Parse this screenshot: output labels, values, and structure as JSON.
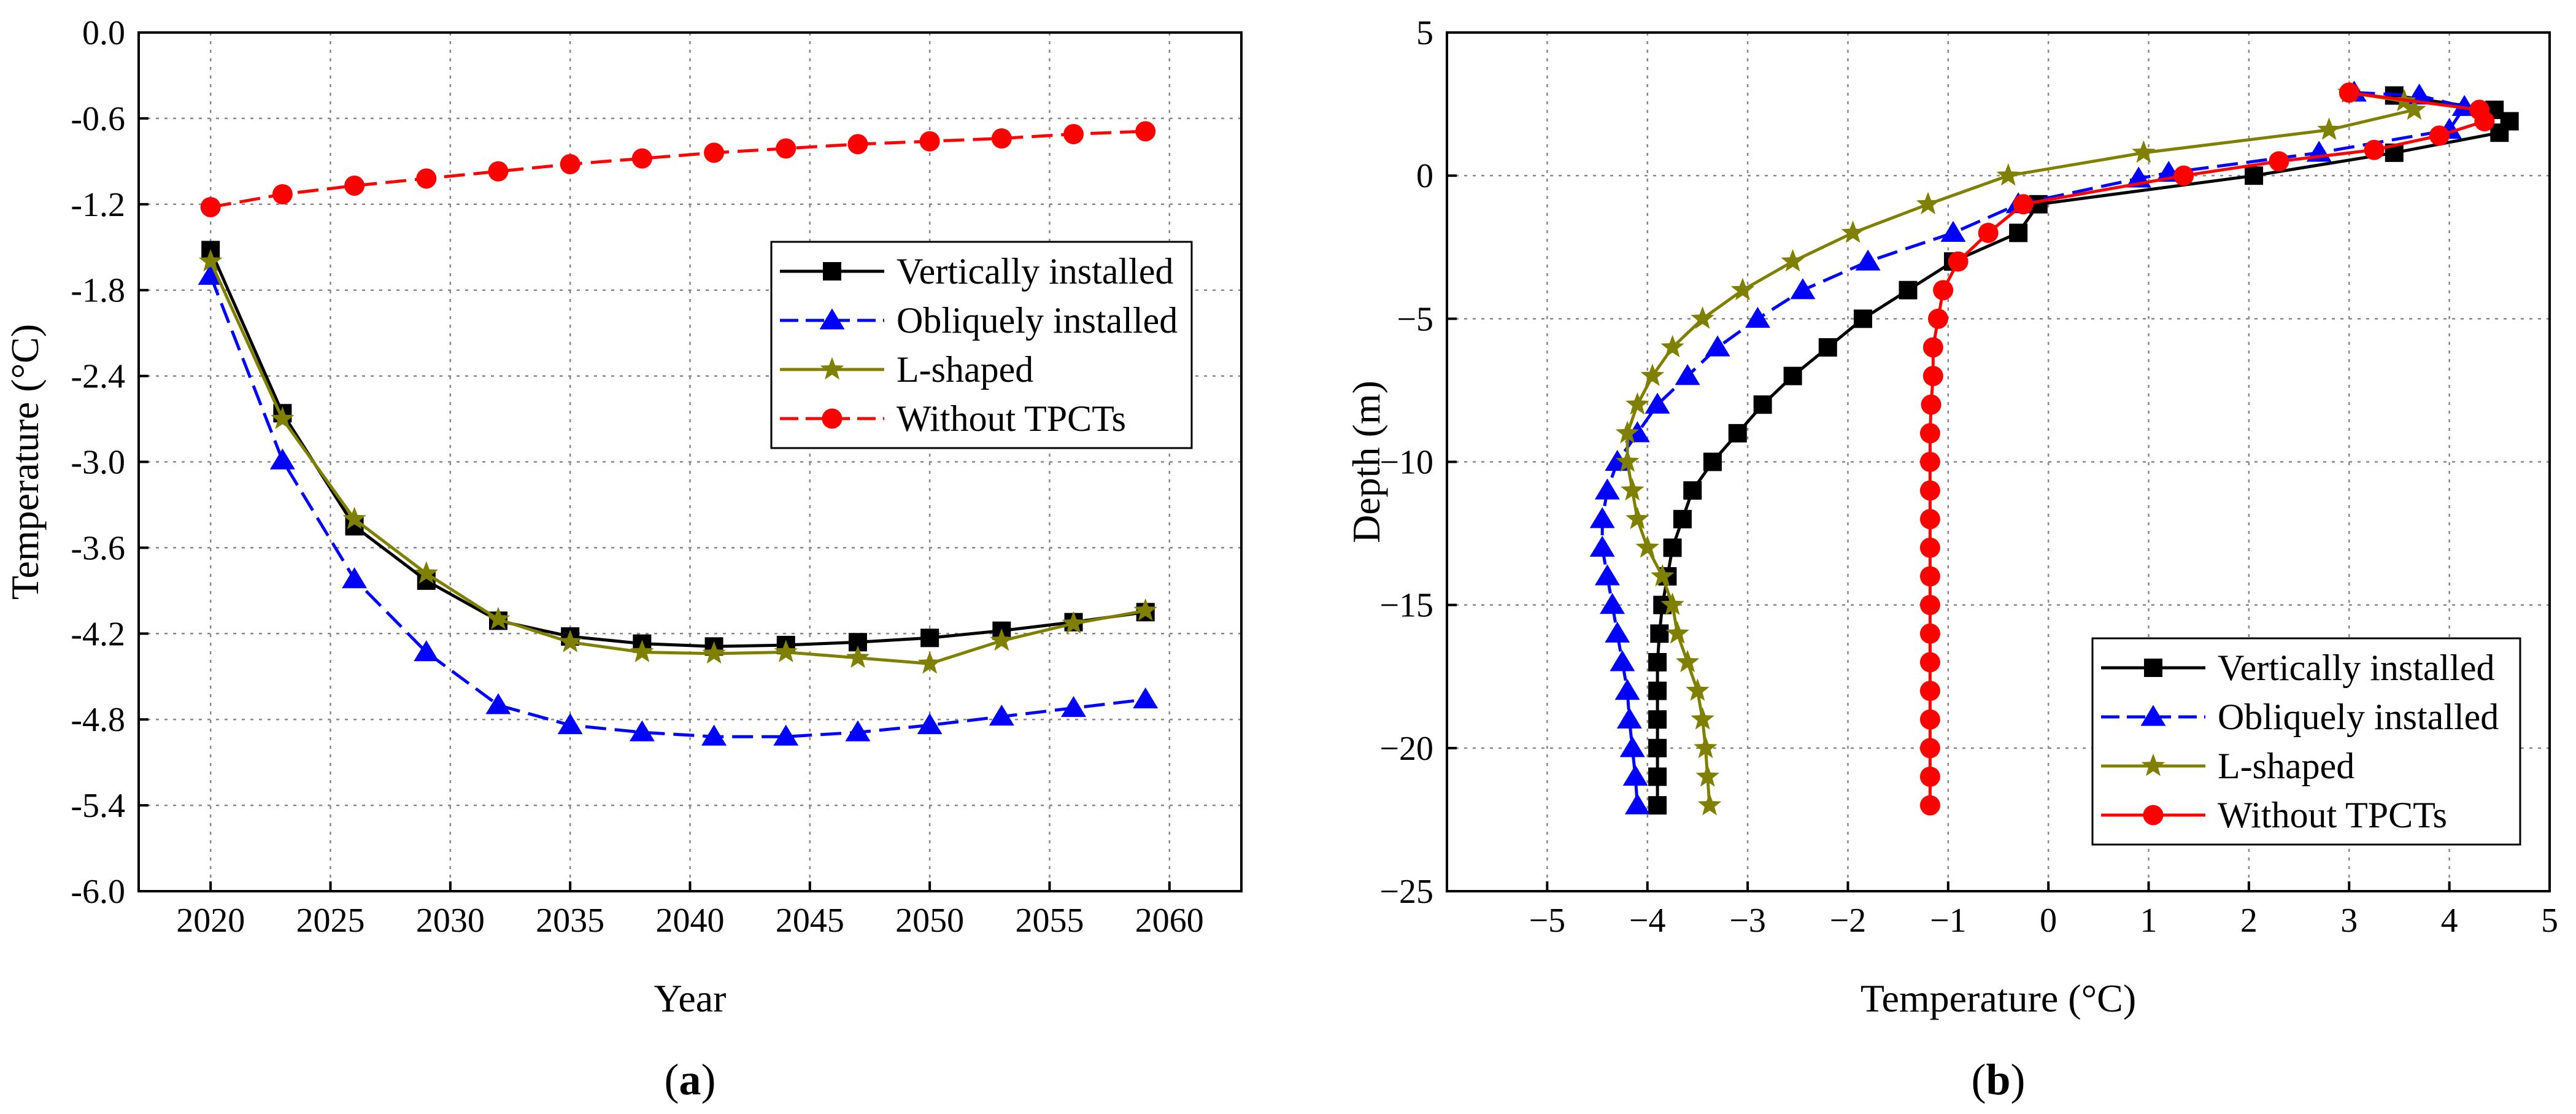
{
  "chart_data": [
    {
      "type": "line",
      "panel_label_prefix": "(",
      "panel_label_letter": "a",
      "panel_label_suffix": ")",
      "xlabel": "Year",
      "ylabel": "Temperature (°C)",
      "xlim": [
        2017,
        2063
      ],
      "ylim": [
        -6.0,
        0.0
      ],
      "xticks": [
        2020,
        2025,
        2030,
        2035,
        2040,
        2045,
        2050,
        2055,
        2060
      ],
      "yticks": [
        0.0,
        -0.6,
        -1.2,
        -1.8,
        -2.4,
        -3.0,
        -3.6,
        -4.2,
        -4.8,
        -5.4,
        -6.0
      ],
      "ytick_labels": [
        "0.0",
        "-0.6",
        "-1.2",
        "-1.8",
        "-2.4",
        "-3.0",
        "-3.6",
        "-4.2",
        "-4.8",
        "-5.4",
        "-6.0"
      ],
      "grid": true,
      "legend_position": "middle-right",
      "x": [
        2020,
        2023,
        2026,
        2029,
        2032,
        2035,
        2038,
        2041,
        2044,
        2047,
        2050,
        2053,
        2056,
        2059
      ],
      "series": [
        {
          "name": "Vertically installed",
          "color": "#000000",
          "marker": "square",
          "dash": "solid",
          "values": [
            -1.52,
            -2.66,
            -3.45,
            -3.83,
            -4.11,
            -4.22,
            -4.27,
            -4.29,
            -4.28,
            -4.26,
            -4.23,
            -4.18,
            -4.12,
            -4.05
          ]
        },
        {
          "name": "Obliquely installed",
          "color": "#0000ff",
          "marker": "triangle",
          "dash": "dashed",
          "values": [
            -1.7,
            -2.99,
            -3.82,
            -4.33,
            -4.7,
            -4.84,
            -4.89,
            -4.92,
            -4.92,
            -4.89,
            -4.84,
            -4.78,
            -4.72,
            -4.66
          ]
        },
        {
          "name": "L-shaped",
          "color": "#808000",
          "marker": "star",
          "dash": "solid",
          "values": [
            -1.6,
            -2.7,
            -3.4,
            -3.78,
            -4.1,
            -4.26,
            -4.33,
            -4.34,
            -4.33,
            -4.37,
            -4.41,
            -4.25,
            -4.13,
            -4.04
          ]
        },
        {
          "name": "Without TPCTs",
          "color": "#ff0000",
          "marker": "circle",
          "dash": "dashed",
          "values": [
            -1.22,
            -1.13,
            -1.07,
            -1.02,
            -0.97,
            -0.92,
            -0.88,
            -0.84,
            -0.81,
            -0.78,
            -0.76,
            -0.74,
            -0.71,
            -0.69
          ]
        }
      ]
    },
    {
      "type": "line",
      "panel_label_prefix": "(",
      "panel_label_letter": "b",
      "panel_label_suffix": ")",
      "xlabel": "Temperature (°C)",
      "ylabel": "Depth (m)",
      "xlim": [
        -6,
        5
      ],
      "ylim": [
        -25,
        5
      ],
      "xticks": [
        -5,
        -4,
        -3,
        -2,
        -1,
        0,
        1,
        2,
        3,
        4,
        5
      ],
      "xtick_labels": [
        "−5",
        "−4",
        "−3",
        "−2",
        "−1",
        "0",
        "1",
        "2",
        "3",
        "4",
        "5"
      ],
      "yticks": [
        5,
        0,
        -5,
        -10,
        -15,
        -20,
        -25
      ],
      "ytick_labels": [
        "5",
        "0",
        "−5",
        "−10",
        "−15",
        "−20",
        "−25"
      ],
      "grid": true,
      "legend_position": "bottom-right",
      "series": [
        {
          "name": "Vertically installed",
          "color": "#000000",
          "marker": "square",
          "dash": "solid",
          "points": [
            [
              3.45,
              2.8
            ],
            [
              4.45,
              2.3
            ],
            [
              4.6,
              1.9
            ],
            [
              4.5,
              1.5
            ],
            [
              3.45,
              0.8
            ],
            [
              2.05,
              0.0
            ],
            [
              -0.1,
              -1.0
            ],
            [
              -0.3,
              -2.0
            ],
            [
              -0.95,
              -3.0
            ],
            [
              -1.4,
              -4.0
            ],
            [
              -1.85,
              -5.0
            ],
            [
              -2.2,
              -6.0
            ],
            [
              -2.55,
              -7.0
            ],
            [
              -2.85,
              -8.0
            ],
            [
              -3.1,
              -9.0
            ],
            [
              -3.35,
              -10.0
            ],
            [
              -3.55,
              -11.0
            ],
            [
              -3.65,
              -12.0
            ],
            [
              -3.75,
              -13.0
            ],
            [
              -3.8,
              -14.0
            ],
            [
              -3.85,
              -15.0
            ],
            [
              -3.88,
              -16.0
            ],
            [
              -3.9,
              -17.0
            ],
            [
              -3.9,
              -18.0
            ],
            [
              -3.9,
              -19.0
            ],
            [
              -3.9,
              -20.0
            ],
            [
              -3.9,
              -21.0
            ],
            [
              -3.9,
              -22.0
            ]
          ]
        },
        {
          "name": "Obliquely installed",
          "color": "#0000ff",
          "marker": "triangle",
          "dash": "dashed",
          "points": [
            [
              3.05,
              2.9
            ],
            [
              3.7,
              2.8
            ],
            [
              4.15,
              2.4
            ],
            [
              4.0,
              1.6
            ],
            [
              2.7,
              0.8
            ],
            [
              1.2,
              0.1
            ],
            [
              0.9,
              -0.1
            ],
            [
              -0.3,
              -1.0
            ],
            [
              -0.95,
              -2.0
            ],
            [
              -1.8,
              -3.0
            ],
            [
              -2.45,
              -4.0
            ],
            [
              -2.9,
              -5.0
            ],
            [
              -3.3,
              -6.0
            ],
            [
              -3.6,
              -7.0
            ],
            [
              -3.9,
              -8.0
            ],
            [
              -4.1,
              -9.0
            ],
            [
              -4.3,
              -10.0
            ],
            [
              -4.4,
              -11.0
            ],
            [
              -4.45,
              -12.0
            ],
            [
              -4.45,
              -13.0
            ],
            [
              -4.4,
              -14.0
            ],
            [
              -4.35,
              -15.0
            ],
            [
              -4.3,
              -16.0
            ],
            [
              -4.25,
              -17.0
            ],
            [
              -4.2,
              -18.0
            ],
            [
              -4.18,
              -19.0
            ],
            [
              -4.15,
              -20.0
            ],
            [
              -4.12,
              -21.0
            ],
            [
              -4.1,
              -22.0
            ]
          ]
        },
        {
          "name": "L-shaped",
          "color": "#808000",
          "marker": "star",
          "dash": "solid",
          "points": [
            [
              3.0,
              2.9
            ],
            [
              3.55,
              2.6
            ],
            [
              3.65,
              2.3
            ],
            [
              2.8,
              1.6
            ],
            [
              0.95,
              0.8
            ],
            [
              -0.4,
              0.0
            ],
            [
              -1.2,
              -1.0
            ],
            [
              -1.95,
              -2.0
            ],
            [
              -2.55,
              -3.0
            ],
            [
              -3.05,
              -4.0
            ],
            [
              -3.45,
              -5.0
            ],
            [
              -3.75,
              -6.0
            ],
            [
              -3.95,
              -7.0
            ],
            [
              -4.1,
              -8.0
            ],
            [
              -4.2,
              -9.0
            ],
            [
              -4.2,
              -10.0
            ],
            [
              -4.15,
              -11.0
            ],
            [
              -4.1,
              -12.0
            ],
            [
              -4.0,
              -13.0
            ],
            [
              -3.85,
              -14.0
            ],
            [
              -3.75,
              -15.0
            ],
            [
              -3.7,
              -16.0
            ],
            [
              -3.6,
              -17.0
            ],
            [
              -3.5,
              -18.0
            ],
            [
              -3.45,
              -19.0
            ],
            [
              -3.42,
              -20.0
            ],
            [
              -3.4,
              -21.0
            ],
            [
              -3.38,
              -22.0
            ]
          ]
        },
        {
          "name": "Without TPCTs",
          "color": "#ff0000",
          "marker": "circle",
          "dash": "solid",
          "points": [
            [
              3.0,
              2.9
            ],
            [
              4.3,
              2.3
            ],
            [
              4.35,
              1.9
            ],
            [
              3.9,
              1.4
            ],
            [
              3.25,
              0.9
            ],
            [
              2.3,
              0.5
            ],
            [
              1.35,
              0.0
            ],
            [
              -0.25,
              -1.0
            ],
            [
              -0.6,
              -2.0
            ],
            [
              -0.9,
              -3.0
            ],
            [
              -1.05,
              -4.0
            ],
            [
              -1.1,
              -5.0
            ],
            [
              -1.15,
              -6.0
            ],
            [
              -1.15,
              -7.0
            ],
            [
              -1.17,
              -8.0
            ],
            [
              -1.18,
              -9.0
            ],
            [
              -1.18,
              -10.0
            ],
            [
              -1.18,
              -11.0
            ],
            [
              -1.18,
              -12.0
            ],
            [
              -1.18,
              -13.0
            ],
            [
              -1.18,
              -14.0
            ],
            [
              -1.18,
              -15.0
            ],
            [
              -1.18,
              -16.0
            ],
            [
              -1.18,
              -17.0
            ],
            [
              -1.18,
              -18.0
            ],
            [
              -1.18,
              -19.0
            ],
            [
              -1.18,
              -20.0
            ],
            [
              -1.18,
              -21.0
            ],
            [
              -1.18,
              -22.0
            ]
          ]
        }
      ]
    }
  ]
}
